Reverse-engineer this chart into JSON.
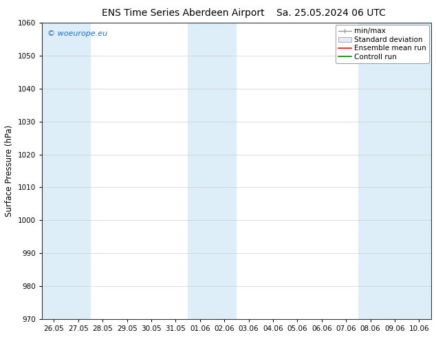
{
  "title": "ENS Time Series Aberdeen Airport",
  "title2": "Sa. 25.05.2024 06 UTC",
  "ylabel": "Surface Pressure (hPa)",
  "ylim": [
    970,
    1060
  ],
  "yticks": [
    970,
    980,
    990,
    1000,
    1010,
    1020,
    1030,
    1040,
    1050,
    1060
  ],
  "bg_color": "#ffffff",
  "plot_bg_color": "#ffffff",
  "shaded_band_color": "#ddeef9",
  "watermark_text": "© woeurope.eu",
  "watermark_color": "#1a6fcc",
  "x_tick_labels": [
    "26.05",
    "27.05",
    "28.05",
    "29.05",
    "30.05",
    "31.05",
    "01.06",
    "02.06",
    "03.06",
    "04.06",
    "05.06",
    "06.06",
    "07.06",
    "08.06",
    "09.06",
    "10.06"
  ],
  "x_tick_positions": [
    0,
    1,
    2,
    3,
    4,
    5,
    6,
    7,
    8,
    9,
    10,
    11,
    12,
    13,
    14,
    15
  ],
  "shade_ranges": [
    [
      -0.5,
      1.5
    ],
    [
      5.5,
      7.5
    ],
    [
      12.5,
      15.5
    ]
  ],
  "legend_labels": [
    "min/max",
    "Standard deviation",
    "Ensemble mean run",
    "Controll run"
  ],
  "legend_line_colors": [
    "#999999",
    "#c8dcea",
    "#ff0000",
    "#008000"
  ],
  "title_fontsize": 10,
  "tick_fontsize": 7.5,
  "ylabel_fontsize": 8.5,
  "watermark_fontsize": 8,
  "legend_fontsize": 7.5
}
